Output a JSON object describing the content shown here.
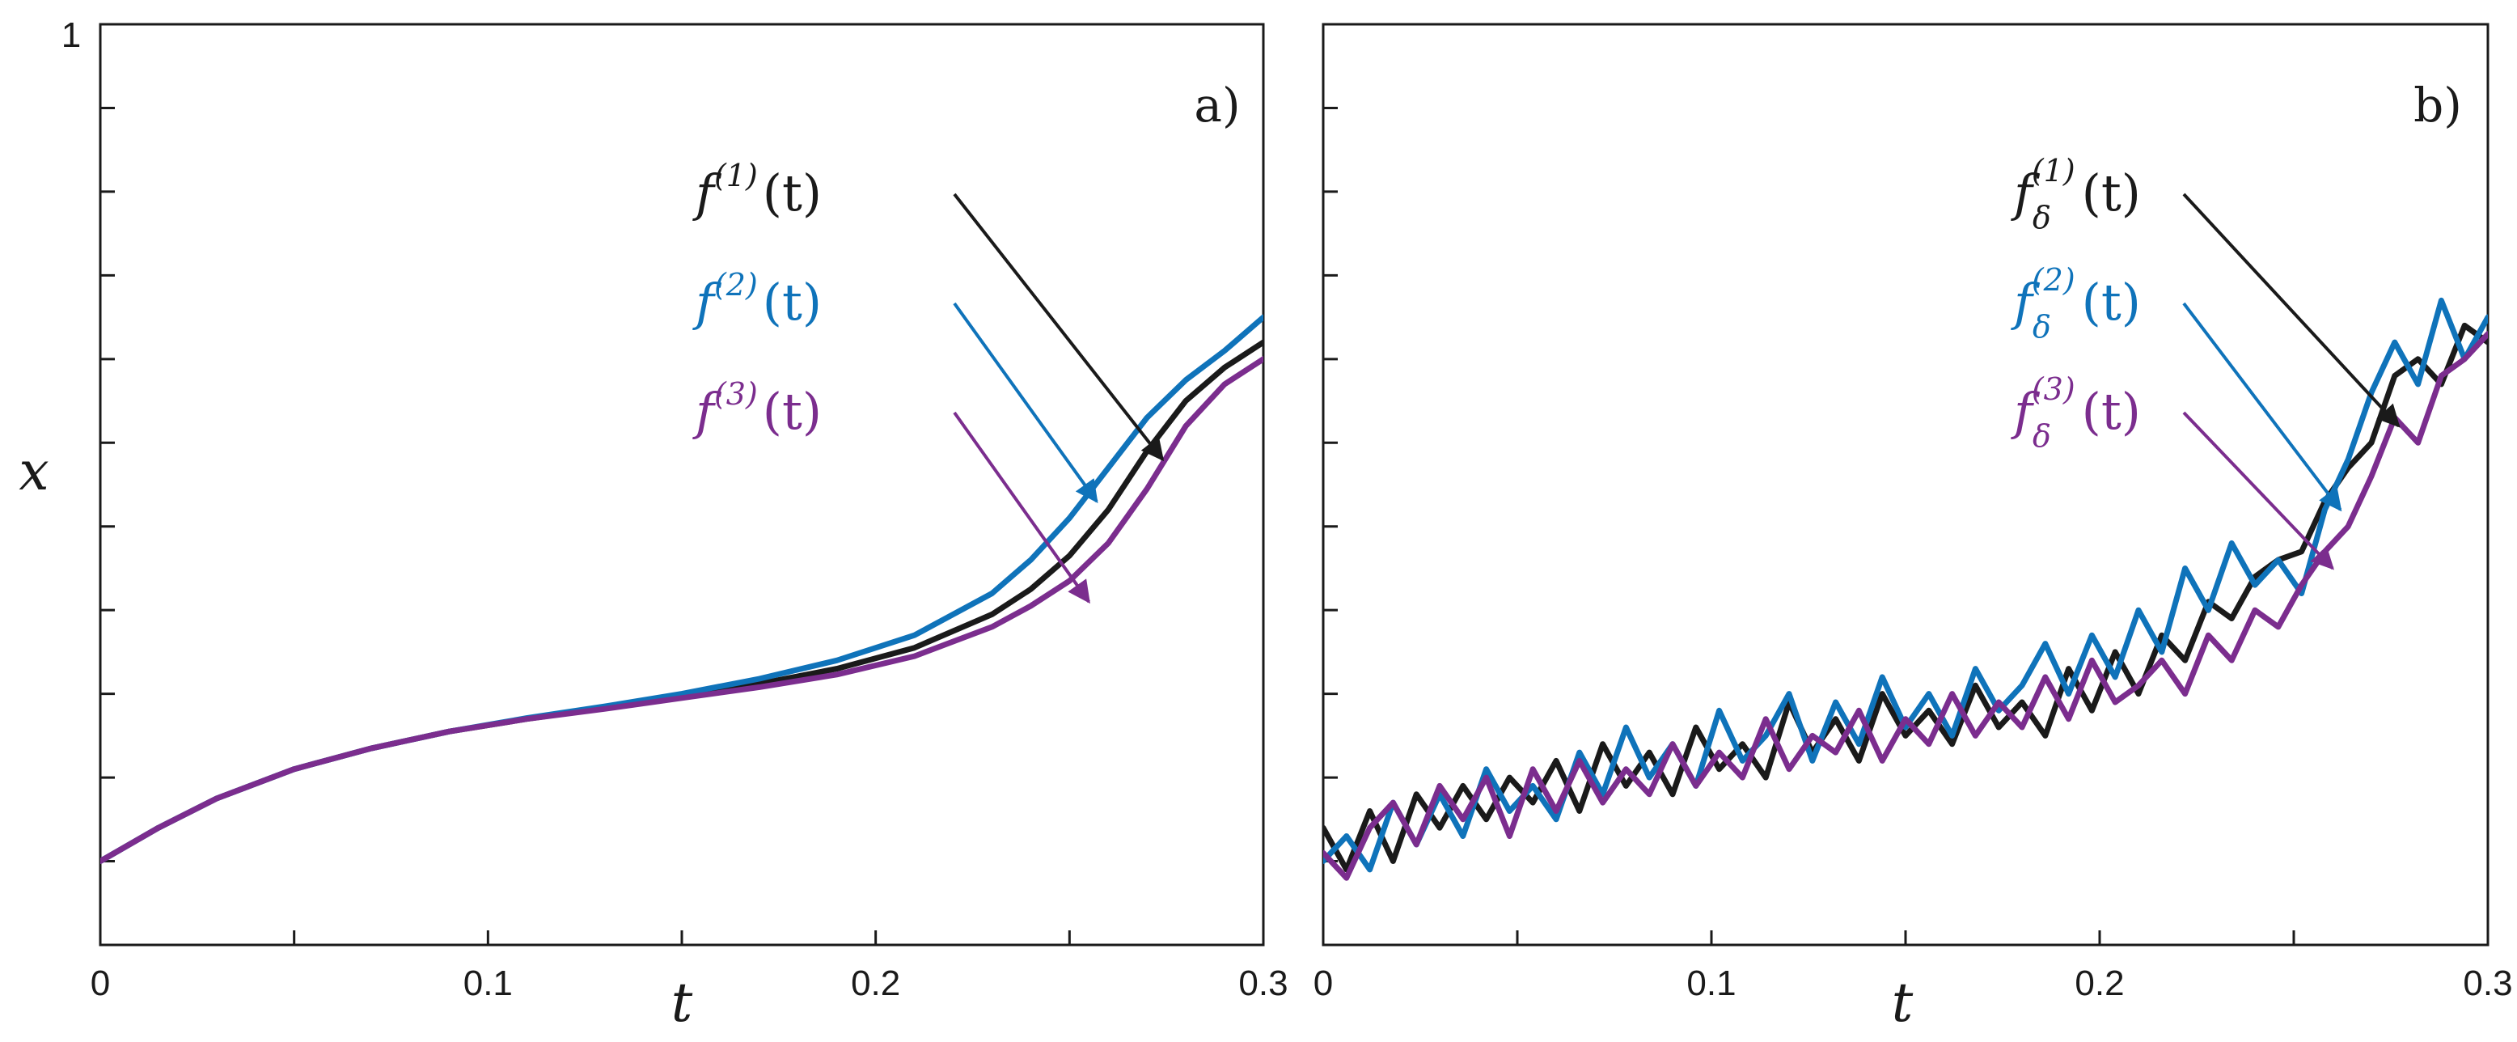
{
  "chart_data": [
    {
      "type": "line",
      "panel_label": "a)",
      "xlabel": "t",
      "ylabel": "x",
      "xlim": [
        0,
        0.3
      ],
      "ylim": [
        -0.1,
        1
      ],
      "xticks": [
        0,
        0.05,
        0.1,
        0.15,
        0.2,
        0.25,
        0.3
      ],
      "xtick_labels": [
        "0",
        "",
        "0.1",
        "",
        "0.2",
        "",
        "0.3"
      ],
      "yticks": [
        0,
        0.1,
        0.2,
        0.3,
        0.4,
        0.5,
        0.6,
        0.7,
        0.8,
        0.9,
        1
      ],
      "ytick_labels": [
        "",
        "",
        "",
        "",
        "",
        "",
        "",
        "",
        "",
        "",
        "1"
      ],
      "series": [
        {
          "name": "f(1)(t)",
          "color": "#1a1a1a",
          "x": [
            0,
            0.015,
            0.03,
            0.05,
            0.07,
            0.09,
            0.11,
            0.13,
            0.15,
            0.17,
            0.19,
            0.21,
            0.23,
            0.24,
            0.25,
            0.26,
            0.27,
            0.28,
            0.29,
            0.3
          ],
          "values": [
            0,
            0.04,
            0.075,
            0.11,
            0.135,
            0.155,
            0.17,
            0.183,
            0.197,
            0.212,
            0.23,
            0.255,
            0.295,
            0.325,
            0.365,
            0.42,
            0.49,
            0.55,
            0.59,
            0.62
          ]
        },
        {
          "name": "f(2)(t)",
          "color": "#0f73ba",
          "x": [
            0,
            0.015,
            0.03,
            0.05,
            0.07,
            0.09,
            0.11,
            0.13,
            0.15,
            0.17,
            0.19,
            0.21,
            0.23,
            0.24,
            0.25,
            0.26,
            0.27,
            0.28,
            0.29,
            0.3
          ],
          "values": [
            0,
            0.04,
            0.075,
            0.11,
            0.135,
            0.155,
            0.171,
            0.185,
            0.2,
            0.218,
            0.24,
            0.27,
            0.32,
            0.36,
            0.41,
            0.47,
            0.53,
            0.575,
            0.61,
            0.65
          ]
        },
        {
          "name": "f(3)(t)",
          "color": "#7b2d8e",
          "x": [
            0,
            0.015,
            0.03,
            0.05,
            0.07,
            0.09,
            0.11,
            0.13,
            0.15,
            0.17,
            0.19,
            0.21,
            0.23,
            0.24,
            0.25,
            0.26,
            0.27,
            0.28,
            0.29,
            0.3
          ],
          "values": [
            0,
            0.04,
            0.075,
            0.11,
            0.135,
            0.155,
            0.17,
            0.182,
            0.195,
            0.208,
            0.223,
            0.245,
            0.28,
            0.305,
            0.335,
            0.38,
            0.445,
            0.52,
            0.57,
            0.6
          ]
        }
      ],
      "annotations": [
        {
          "base": "f",
          "sup": "(1)",
          "sub": "",
          "arg": "(t)",
          "color": "#1a1a1a",
          "target": [
            0.274,
            0.48
          ]
        },
        {
          "base": "f",
          "sup": "(2)",
          "sub": "",
          "arg": "(t)",
          "color": "#0f73ba",
          "target": [
            0.257,
            0.43
          ]
        },
        {
          "base": "f",
          "sup": "(3)",
          "sub": "",
          "arg": "(t)",
          "color": "#7b2d8e",
          "target": [
            0.255,
            0.31
          ]
        }
      ]
    },
    {
      "type": "line",
      "panel_label": "b)",
      "xlabel": "t",
      "ylabel": "",
      "xlim": [
        0,
        0.3
      ],
      "ylim": [
        -0.1,
        1
      ],
      "xticks": [
        0,
        0.05,
        0.1,
        0.15,
        0.2,
        0.25,
        0.3
      ],
      "xtick_labels": [
        "0",
        "",
        "0.1",
        "",
        "0.2",
        "",
        "0.3"
      ],
      "yticks": [
        0,
        0.1,
        0.2,
        0.3,
        0.4,
        0.5,
        0.6,
        0.7,
        0.8,
        0.9,
        1
      ],
      "ytick_labels": [
        "",
        "",
        "",
        "",
        "",
        "",
        "",
        "",
        "",
        "",
        ""
      ],
      "series": [
        {
          "name": "fδ(1)(t)",
          "color": "#1a1a1a",
          "x": [
            0,
            0.006,
            0.012,
            0.018,
            0.024,
            0.03,
            0.036,
            0.042,
            0.048,
            0.054,
            0.06,
            0.066,
            0.072,
            0.078,
            0.084,
            0.09,
            0.096,
            0.102,
            0.108,
            0.114,
            0.12,
            0.126,
            0.132,
            0.138,
            0.144,
            0.15,
            0.156,
            0.162,
            0.168,
            0.174,
            0.18,
            0.186,
            0.192,
            0.198,
            0.204,
            0.21,
            0.216,
            0.222,
            0.228,
            0.234,
            0.24,
            0.246,
            0.252,
            0.258,
            0.264,
            0.27,
            0.276,
            0.282,
            0.288,
            0.294,
            0.3
          ],
          "values": [
            0.04,
            -0.01,
            0.06,
            0.0,
            0.08,
            0.04,
            0.09,
            0.05,
            0.1,
            0.07,
            0.12,
            0.06,
            0.14,
            0.09,
            0.13,
            0.08,
            0.16,
            0.11,
            0.14,
            0.1,
            0.19,
            0.13,
            0.17,
            0.12,
            0.2,
            0.15,
            0.18,
            0.14,
            0.21,
            0.16,
            0.19,
            0.15,
            0.23,
            0.18,
            0.25,
            0.2,
            0.27,
            0.24,
            0.31,
            0.29,
            0.34,
            0.36,
            0.37,
            0.43,
            0.47,
            0.5,
            0.58,
            0.6,
            0.57,
            0.64,
            0.62
          ]
        },
        {
          "name": "fδ(2)(t)",
          "color": "#0f73ba",
          "x": [
            0,
            0.006,
            0.012,
            0.018,
            0.024,
            0.03,
            0.036,
            0.042,
            0.048,
            0.054,
            0.06,
            0.066,
            0.072,
            0.078,
            0.084,
            0.09,
            0.096,
            0.102,
            0.108,
            0.114,
            0.12,
            0.126,
            0.132,
            0.138,
            0.144,
            0.15,
            0.156,
            0.162,
            0.168,
            0.174,
            0.18,
            0.186,
            0.192,
            0.198,
            0.204,
            0.21,
            0.216,
            0.222,
            0.228,
            0.234,
            0.24,
            0.246,
            0.252,
            0.258,
            0.264,
            0.27,
            0.276,
            0.282,
            0.288,
            0.294,
            0.3
          ],
          "values": [
            0.0,
            0.03,
            -0.01,
            0.07,
            0.02,
            0.08,
            0.03,
            0.11,
            0.06,
            0.09,
            0.05,
            0.13,
            0.08,
            0.16,
            0.1,
            0.14,
            0.09,
            0.18,
            0.12,
            0.15,
            0.2,
            0.12,
            0.19,
            0.14,
            0.22,
            0.16,
            0.2,
            0.15,
            0.23,
            0.18,
            0.21,
            0.26,
            0.2,
            0.27,
            0.22,
            0.3,
            0.25,
            0.35,
            0.3,
            0.38,
            0.33,
            0.36,
            0.32,
            0.42,
            0.48,
            0.56,
            0.62,
            0.57,
            0.67,
            0.6,
            0.65
          ]
        },
        {
          "name": "fδ(3)(t)",
          "color": "#7b2d8e",
          "x": [
            0,
            0.006,
            0.012,
            0.018,
            0.024,
            0.03,
            0.036,
            0.042,
            0.048,
            0.054,
            0.06,
            0.066,
            0.072,
            0.078,
            0.084,
            0.09,
            0.096,
            0.102,
            0.108,
            0.114,
            0.12,
            0.126,
            0.132,
            0.138,
            0.144,
            0.15,
            0.156,
            0.162,
            0.168,
            0.174,
            0.18,
            0.186,
            0.192,
            0.198,
            0.204,
            0.21,
            0.216,
            0.222,
            0.228,
            0.234,
            0.24,
            0.246,
            0.252,
            0.258,
            0.264,
            0.27,
            0.276,
            0.282,
            0.288,
            0.294,
            0.3
          ],
          "values": [
            0.01,
            -0.02,
            0.04,
            0.07,
            0.02,
            0.09,
            0.05,
            0.1,
            0.03,
            0.11,
            0.06,
            0.12,
            0.07,
            0.11,
            0.08,
            0.14,
            0.09,
            0.13,
            0.1,
            0.17,
            0.11,
            0.15,
            0.13,
            0.18,
            0.12,
            0.17,
            0.14,
            0.2,
            0.15,
            0.19,
            0.16,
            0.22,
            0.17,
            0.24,
            0.19,
            0.21,
            0.24,
            0.2,
            0.27,
            0.24,
            0.3,
            0.28,
            0.33,
            0.37,
            0.4,
            0.46,
            0.53,
            0.5,
            0.58,
            0.6,
            0.63
          ]
        }
      ],
      "annotations": [
        {
          "base": "f",
          "sup": "(1)",
          "sub": "δ",
          "arg": "(t)",
          "color": "#1a1a1a",
          "target": [
            0.277,
            0.52
          ]
        },
        {
          "base": "f",
          "sup": "(2)",
          "sub": "δ",
          "arg": "(t)",
          "color": "#0f73ba",
          "target": [
            0.262,
            0.42
          ]
        },
        {
          "base": "f",
          "sup": "(3)",
          "sub": "δ",
          "arg": "(t)",
          "color": "#7b2d8e",
          "target": [
            0.26,
            0.35
          ]
        }
      ]
    }
  ]
}
